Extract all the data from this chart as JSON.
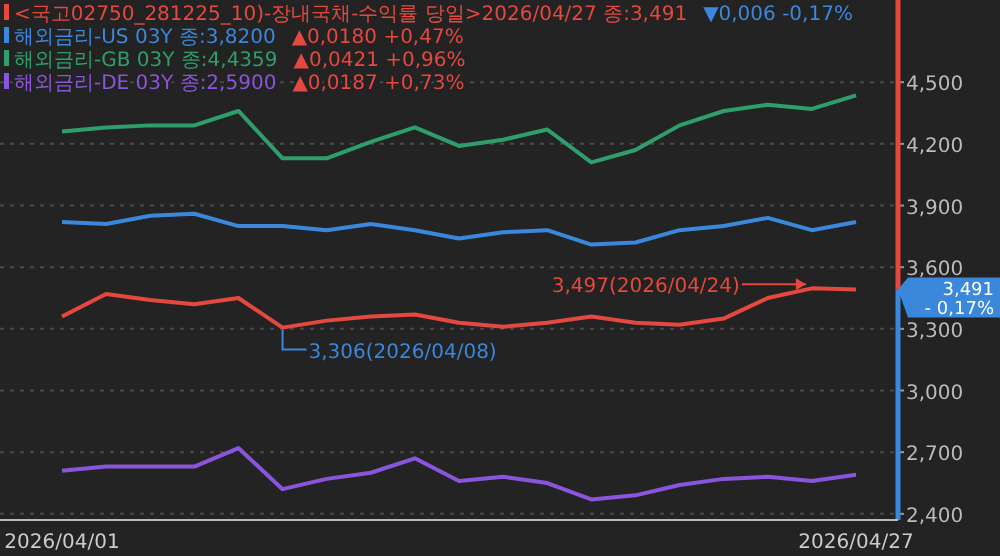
{
  "chart_data": {
    "type": "line",
    "categories": [
      "2026/04/01",
      null,
      null,
      null,
      null,
      null,
      null,
      null,
      null,
      null,
      null,
      null,
      null,
      null,
      null,
      null,
      null,
      null,
      "2026/04/27"
    ],
    "series": [
      {
        "name": "<국고02750_281225_10)-장내국채-수익률 당일>2026/04/27 종:3,491",
        "color": "#e5483f",
        "values": [
          3360,
          3470,
          3440,
          3420,
          3450,
          3306,
          3340,
          3360,
          3370,
          3330,
          3310,
          3330,
          3360,
          3330,
          3320,
          3350,
          3450,
          3497,
          3491
        ]
      },
      {
        "name": "해외금리-US 03Y 종:3,8200",
        "color": "#3b87dc",
        "values": [
          3820,
          3810,
          3850,
          3860,
          3800,
          3800,
          3780,
          3810,
          3780,
          3740,
          3770,
          3780,
          3710,
          3720,
          3780,
          3800,
          3840,
          3780,
          3820
        ]
      },
      {
        "name": "해외금리-GB 03Y 종:4,4359",
        "color": "#2e9e6c",
        "values": [
          4260,
          4280,
          4290,
          4290,
          4360,
          4130,
          4130,
          4210,
          4280,
          4190,
          4220,
          4270,
          4110,
          4170,
          4290,
          4360,
          4390,
          4370,
          4436
        ]
      },
      {
        "name": "해외금리-DE 03Y 종:2,5900",
        "color": "#8a55dc",
        "values": [
          2610,
          2630,
          2630,
          2630,
          2720,
          2520,
          2570,
          2600,
          2670,
          2560,
          2580,
          2550,
          2470,
          2490,
          2540,
          2570,
          2580,
          2560,
          2590
        ]
      }
    ],
    "annotations": [
      "▼0,006 -0,17%",
      "▲0,0180 +0,47%",
      "▲0,0421 +0,96%",
      "▲0,0187 +0,73%",
      "3,497(2026/04/24)",
      "3,306(2026/04/08)",
      "3,491\n- 0,17%"
    ],
    "ylim": [
      2370,
      4900
    ],
    "yticks": [
      {
        "value": 2400,
        "label": "2,400"
      },
      {
        "value": 2700,
        "label": "2,700"
      },
      {
        "value": 3000,
        "label": "3,000"
      },
      {
        "value": 3300,
        "label": "3,300"
      },
      {
        "value": 3600,
        "label": "3,600"
      },
      {
        "value": 3900,
        "label": "3,900"
      },
      {
        "value": 4200,
        "label": "4,200"
      },
      {
        "value": 4500,
        "label": "4,500"
      }
    ],
    "grid": "y",
    "legend": "top left"
  }
}
